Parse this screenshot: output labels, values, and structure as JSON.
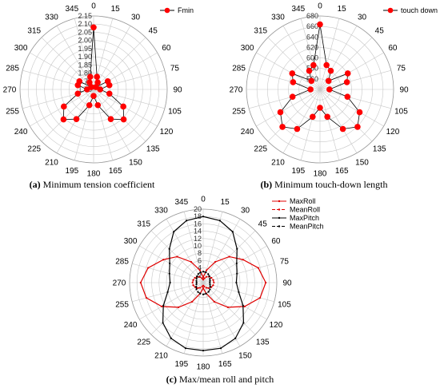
{
  "chart_data": [
    {
      "type": "polar",
      "panel": "a",
      "caption_label": "(a)",
      "caption_text": "Minimum tension coefficient",
      "angles": [
        0,
        15,
        30,
        45,
        60,
        75,
        90,
        105,
        120,
        135,
        150,
        165,
        180,
        195,
        210,
        225,
        240,
        255,
        270,
        285,
        300,
        315,
        330,
        345
      ],
      "angle_labels": [
        "0",
        "15",
        "30",
        "45",
        "60",
        "75",
        "90",
        "105",
        "120",
        "135",
        "150",
        "165",
        "180",
        "195",
        "210",
        "225",
        "240",
        "255",
        "270",
        "285",
        "300",
        "315",
        "330",
        "345"
      ],
      "rlim": [
        1.7,
        2.15
      ],
      "r_ticks": [
        "1.70",
        "1.75",
        "1.80",
        "1.85",
        "1.90",
        "1.95",
        "2.00",
        "2.05",
        "2.10",
        "2.15"
      ],
      "series": [
        {
          "name": "Fmin",
          "color": "#ff0000",
          "line_color": "#000000",
          "marker": "circle",
          "values": [
            2.08,
            1.78,
            1.75,
            1.72,
            1.8,
            1.8,
            1.74,
            1.8,
            1.91,
            1.96,
            1.91,
            1.8,
            1.74,
            1.8,
            1.91,
            1.96,
            1.91,
            1.8,
            1.74,
            1.8,
            1.8,
            1.72,
            1.75,
            1.78
          ]
        }
      ],
      "legend_position": "top-right"
    },
    {
      "type": "polar",
      "panel": "b",
      "caption_label": "(b)",
      "caption_text": "Minimum touch-down length",
      "angles": [
        0,
        15,
        30,
        45,
        60,
        75,
        90,
        105,
        120,
        135,
        150,
        165,
        180,
        195,
        210,
        225,
        240,
        255,
        270,
        285,
        300,
        315,
        330,
        345
      ],
      "angle_labels": [
        "0",
        "15",
        "30",
        "45",
        "60",
        "75",
        "90",
        "105",
        "120",
        "135",
        "150",
        "165",
        "180",
        "195",
        "210",
        "225",
        "240",
        "255",
        "270",
        "285",
        "300",
        "315",
        "330",
        "345"
      ],
      "rlim": [
        540,
        680
      ],
      "r_ticks": [
        "560",
        "580",
        "600",
        "620",
        "640",
        "660",
        "680"
      ],
      "series": [
        {
          "name": "touch down",
          "color": "#ff0000",
          "line_color": "#000000",
          "marker": "circle",
          "values": [
            664,
            588,
            581,
            563,
            601,
            593,
            558,
            594,
            627,
            641,
            627,
            594,
            575,
            594,
            627,
            641,
            627,
            594,
            558,
            593,
            601,
            563,
            581,
            588
          ]
        }
      ],
      "legend_position": "top-right"
    },
    {
      "type": "polar",
      "panel": "c",
      "caption_label": "(c)",
      "caption_text": "Max/mean roll and pitch",
      "angles": [
        0,
        15,
        30,
        45,
        60,
        75,
        90,
        105,
        120,
        135,
        150,
        165,
        180,
        195,
        210,
        225,
        240,
        255,
        270,
        285,
        300,
        315,
        330,
        345
      ],
      "angle_labels": [
        "0",
        "15",
        "30",
        "45",
        "60",
        "75",
        "90",
        "105",
        "120",
        "135",
        "150",
        "165",
        "180",
        "195",
        "210",
        "225",
        "240",
        "255",
        "270",
        "285",
        "300",
        "315",
        "330",
        "345"
      ],
      "rlim": [
        0,
        20
      ],
      "r_ticks": [
        "2",
        "4",
        "6",
        "8",
        "10",
        "12",
        "14",
        "16",
        "18",
        "20"
      ],
      "series": [
        {
          "name": "MaxRoll",
          "color": "#e00000",
          "dash": "solid",
          "marker": "dot",
          "values": [
            1.5,
            3.5,
            6.5,
            10.0,
            12.5,
            15.5,
            17.0,
            16.0,
            13.0,
            9.5,
            6.0,
            3.0,
            1.5,
            3.0,
            6.0,
            9.5,
            13.0,
            16.0,
            17.0,
            15.5,
            12.5,
            10.0,
            6.5,
            3.5
          ]
        },
        {
          "name": "MeanRoll",
          "color": "#e00000",
          "dash": "dash",
          "marker": "dot",
          "values": [
            0.8,
            1.2,
            1.8,
            2.3,
            2.6,
            2.8,
            2.9,
            2.8,
            2.5,
            2.1,
            1.6,
            1.1,
            0.8,
            1.1,
            1.6,
            2.1,
            2.5,
            2.8,
            2.9,
            2.8,
            2.6,
            2.3,
            1.8,
            1.2
          ]
        },
        {
          "name": "MaxPitch",
          "color": "#000000",
          "dash": "solid",
          "marker": "dot",
          "values": [
            18.0,
            17.5,
            16.0,
            13.0,
            10.5,
            9.5,
            9.0,
            10.0,
            12.5,
            15.5,
            17.5,
            18.5,
            18.5,
            18.5,
            17.5,
            15.5,
            12.5,
            10.0,
            9.0,
            9.5,
            10.5,
            13.0,
            16.0,
            17.5
          ]
        },
        {
          "name": "MeanPitch",
          "color": "#000000",
          "dash": "dash",
          "marker": "dot",
          "values": [
            3.0,
            2.9,
            2.7,
            2.4,
            2.1,
            1.9,
            1.8,
            1.9,
            2.2,
            2.6,
            2.9,
            3.1,
            3.2,
            3.1,
            2.9,
            2.6,
            2.2,
            1.9,
            1.8,
            1.9,
            2.1,
            2.4,
            2.7,
            2.9
          ]
        }
      ],
      "legend_position": "top-right"
    }
  ]
}
